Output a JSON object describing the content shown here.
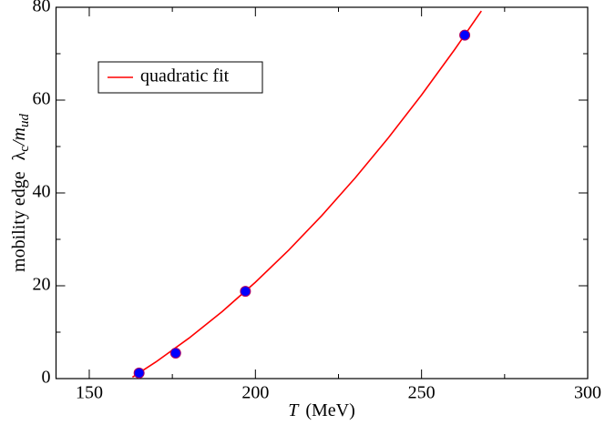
{
  "chart_data": {
    "type": "scatter",
    "xlabel": {
      "symbol": "T",
      "unit": "(MeV)"
    },
    "ylabel": {
      "text": "mobility edge",
      "symbol": "λ",
      "sub": "c",
      "over": "/m",
      "over_sub": "ud"
    },
    "xlim": [
      140,
      300
    ],
    "ylim": [
      0,
      80
    ],
    "xticks": [
      150,
      200,
      250,
      300
    ],
    "yticks": [
      0,
      20,
      40,
      60,
      80
    ],
    "xminorticks": [
      175,
      225,
      275
    ],
    "yminorticks": [
      10,
      30,
      50,
      70
    ],
    "legend": "upper left",
    "series": [
      {
        "name": "quadratic fit",
        "kind": "line",
        "color": "#ff0000",
        "x": [
          163,
          170,
          180,
          190,
          200,
          210,
          220,
          230,
          240,
          250,
          260,
          268
        ],
        "values": [
          0.3,
          3.56,
          8.71,
          14.44,
          20.76,
          27.66,
          35.14,
          43.21,
          51.87,
          61.1,
          70.93,
          79.2
        ]
      },
      {
        "kind": "points",
        "color": "#0000ff",
        "edge": "#b00060",
        "x": [
          165,
          176,
          197,
          263
        ],
        "values": [
          1.2,
          5.5,
          18.8,
          74
        ]
      }
    ]
  }
}
